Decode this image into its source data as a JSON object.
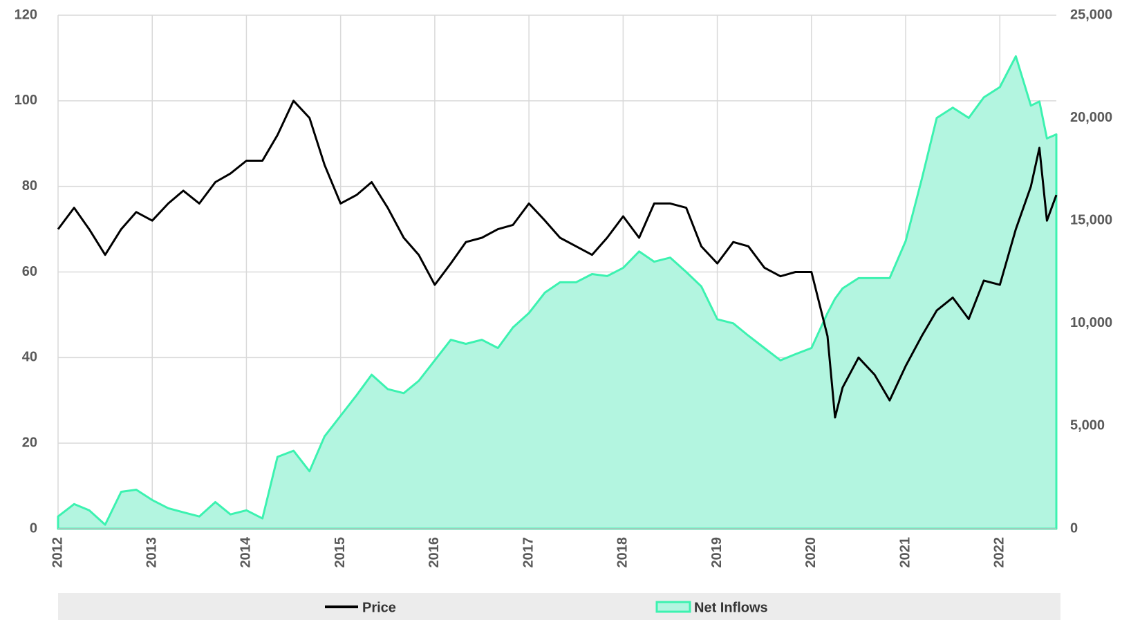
{
  "chart_data": {
    "type": "line-area",
    "x": [
      2012,
      2012.17,
      2012.33,
      2012.5,
      2012.67,
      2012.83,
      2013,
      2013.17,
      2013.33,
      2013.5,
      2013.67,
      2013.83,
      2014,
      2014.17,
      2014.33,
      2014.5,
      2014.67,
      2014.83,
      2015,
      2015.17,
      2015.33,
      2015.5,
      2015.67,
      2015.83,
      2016,
      2016.17,
      2016.33,
      2016.5,
      2016.67,
      2016.83,
      2017,
      2017.17,
      2017.33,
      2017.5,
      2017.67,
      2017.83,
      2018,
      2018.17,
      2018.33,
      2018.5,
      2018.67,
      2018.83,
      2019,
      2019.17,
      2019.33,
      2019.5,
      2019.67,
      2019.83,
      2020,
      2020.17,
      2020.25,
      2020.33,
      2020.5,
      2020.67,
      2020.83,
      2021,
      2021.17,
      2021.33,
      2021.5,
      2021.67,
      2021.83,
      2022,
      2022.17,
      2022.33,
      2022.42,
      2022.5,
      2022.6
    ],
    "series": [
      {
        "name": "Price",
        "color": "#000000",
        "axis": "y",
        "values": [
          70,
          75,
          70,
          64,
          70,
          74,
          72,
          76,
          79,
          76,
          81,
          83,
          86,
          86,
          92,
          100,
          96,
          85,
          76,
          78,
          81,
          75,
          68,
          64,
          57,
          62,
          67,
          68,
          70,
          71,
          76,
          72,
          68,
          66,
          64,
          68,
          73,
          68,
          76,
          76,
          75,
          66,
          62,
          67,
          66,
          61,
          59,
          60,
          60,
          45,
          26,
          33,
          40,
          36,
          30,
          38,
          45,
          51,
          54,
          49,
          58,
          57,
          70,
          80,
          89,
          72,
          78
        ]
      },
      {
        "name": "Net Inflows",
        "color": "#3cf2b0",
        "fill": "#b3f5e0",
        "axis": "y2",
        "values": [
          600,
          1200,
          900,
          200,
          1800,
          1900,
          1400,
          1000,
          800,
          600,
          1300,
          700,
          900,
          500,
          3500,
          3800,
          2800,
          4500,
          5500,
          6500,
          7500,
          6800,
          6600,
          7200,
          8200,
          9200,
          9000,
          9200,
          8800,
          9800,
          10500,
          11500,
          12000,
          12000,
          12400,
          12300,
          12700,
          13500,
          13000,
          13200,
          12500,
          11800,
          10200,
          10000,
          9400,
          8800,
          8200,
          8500,
          8800,
          10500,
          11200,
          11700,
          12200,
          12200,
          12200,
          14000,
          17000,
          20000,
          20500,
          20000,
          21000,
          21500,
          23000,
          20600,
          20800,
          19000,
          19200
        ]
      }
    ],
    "xlim": [
      2012,
      2022.6
    ],
    "xticks": [
      2012,
      2013,
      2014,
      2015,
      2016,
      2017,
      2018,
      2019,
      2020,
      2021,
      2022
    ],
    "ylim": [
      0,
      120
    ],
    "yticks": [
      0,
      20,
      40,
      60,
      80,
      100,
      120
    ],
    "y2lim": [
      0,
      25000
    ],
    "y2ticks": [
      0,
      {
        "value": 5000,
        "label": "5,000"
      },
      {
        "value": 10000,
        "label": "10,000"
      },
      {
        "value": 15000,
        "label": "15,000"
      },
      {
        "value": 20000,
        "label": "20,000"
      },
      {
        "value": 25000,
        "label": "25,000"
      }
    ],
    "grid": true,
    "legend": "bottom"
  }
}
